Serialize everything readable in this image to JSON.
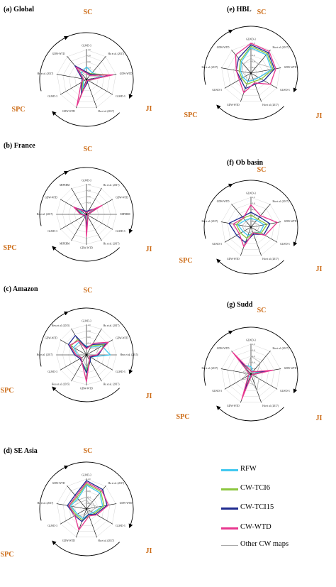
{
  "legend": {
    "items": [
      {
        "label": "RFW",
        "color": "#41c8f0",
        "width": 3
      },
      {
        "label": "CW-TCI6",
        "color": "#8cc63f",
        "width": 3
      },
      {
        "label": "CW-TCI15",
        "color": "#1f2b8f",
        "width": 3
      },
      {
        "label": "CW-WTD",
        "color": "#e8378f",
        "width": 3
      },
      {
        "label": "Other CW maps",
        "color": "#aaaaaa",
        "width": 1
      }
    ]
  },
  "chart_data": [
    {
      "type": "radar",
      "title": "(a) Global",
      "axes": [
        "GLWD-3",
        "Hu et al. (2017)",
        "GDW-WTD",
        "GLWD-3",
        "Hu et al. (2017)",
        "GDW-WTD",
        "GLWD-3",
        "Hu et al. (2017)",
        "GDW-WTD"
      ],
      "rlim": [
        0,
        1
      ],
      "ticks": [
        "0.4",
        "0.6",
        "0.8",
        "1.0"
      ],
      "arc_labels": [
        "SC",
        "JI",
        "SPC"
      ],
      "series": [
        {
          "name": "RFW",
          "values": [
            0.42,
            0.3,
            0.55,
            0.05,
            0.1,
            0.3,
            0.12,
            0.12,
            0.28
          ]
        },
        {
          "name": "CW-TCI6",
          "values": [
            0.25,
            0.25,
            0.85,
            0.06,
            0.1,
            0.45,
            0.15,
            0.12,
            0.55
          ]
        },
        {
          "name": "CW-TCI15",
          "values": [
            0.25,
            0.22,
            0.8,
            0.05,
            0.1,
            0.5,
            0.18,
            0.15,
            0.6
          ]
        },
        {
          "name": "CW-WTD",
          "values": [
            0.22,
            0.18,
            0.9,
            0.06,
            0.05,
            0.95,
            0.2,
            0.1,
            0.55
          ]
        },
        {
          "name": "Other CW maps",
          "values": [
            0.15,
            0.2,
            0.5,
            0.05,
            0.1,
            0.3,
            0.12,
            0.1,
            0.35
          ]
        },
        {
          "name": "Other CW maps",
          "values": [
            0.2,
            0.15,
            0.6,
            0.1,
            0.08,
            0.4,
            0.1,
            0.12,
            0.45
          ]
        }
      ]
    },
    {
      "type": "radar",
      "title": "(b) France",
      "axes": [
        "GLWD-3",
        "Hu et al. (2017)",
        "GDW-WTD",
        "MIPERM",
        "GLWD-3",
        "Hu et al. (2017)",
        "GDW-WTD",
        "MIPERM",
        "GLWD-3",
        "Hu et al. (2017)",
        "GDW-WTD",
        "MIPERM"
      ],
      "rlim": [
        0,
        1
      ],
      "ticks": [
        "0.4",
        "0.6",
        "0.8",
        "1.0"
      ],
      "arc_labels": [
        "SC",
        "JI",
        "SPC"
      ],
      "series": [
        {
          "name": "RFW",
          "values": [
            0.08,
            0.1,
            0.35,
            0.05,
            0.05,
            0.05,
            0.2,
            0.05,
            0.05,
            0.1,
            0.3,
            0.1
          ]
        },
        {
          "name": "CW-TCI6",
          "values": [
            0.1,
            0.12,
            0.4,
            0.05,
            0.05,
            0.08,
            0.35,
            0.05,
            0.08,
            0.15,
            0.4,
            0.12
          ]
        },
        {
          "name": "CW-TCI15",
          "values": [
            0.1,
            0.15,
            0.42,
            0.05,
            0.05,
            0.1,
            0.38,
            0.08,
            0.08,
            0.18,
            0.45,
            0.15
          ]
        },
        {
          "name": "CW-WTD",
          "values": [
            0.05,
            0.1,
            0.6,
            0.05,
            0.05,
            0.1,
            0.75,
            0.05,
            0.05,
            0.2,
            0.5,
            0.1
          ]
        },
        {
          "name": "Other CW maps",
          "values": [
            0.1,
            0.1,
            0.3,
            0.1,
            0.05,
            0.1,
            0.3,
            0.1,
            0.1,
            0.12,
            0.35,
            0.1
          ]
        }
      ]
    },
    {
      "type": "radar",
      "title": "(c) Amazon",
      "axes": [
        "GLWD-3",
        "Hu et al. (2017)",
        "GDW-WTD",
        "Hess et al. (2015)",
        "GLWD-3",
        "Hu et al. (2017)",
        "GDW-WTD",
        "Hess et al. (2015)",
        "GLWD-3",
        "Hu et al. (2017)",
        "GDW-WTD",
        "Hess et al. (2015)"
      ],
      "rlim": [
        0,
        1
      ],
      "ticks": [
        "0.4",
        "0.6",
        "0.8",
        "1.0"
      ],
      "arc_labels": [
        "SC",
        "JI",
        "SPC"
      ],
      "series": [
        {
          "name": "RFW",
          "values": [
            0.3,
            0.3,
            0.6,
            0.8,
            0.15,
            0.2,
            0.5,
            0.3,
            0.2,
            0.3,
            0.5,
            0.5
          ]
        },
        {
          "name": "CW-TCI6",
          "values": [
            0.25,
            0.35,
            0.7,
            0.4,
            0.15,
            0.2,
            0.55,
            0.3,
            0.2,
            0.35,
            0.6,
            0.6
          ]
        },
        {
          "name": "CW-TCI15",
          "values": [
            0.25,
            0.4,
            0.75,
            0.4,
            0.15,
            0.25,
            0.6,
            0.3,
            0.25,
            0.4,
            0.7,
            0.75
          ]
        },
        {
          "name": "CW-WTD",
          "values": [
            0.2,
            0.45,
            0.85,
            0.35,
            0.1,
            0.2,
            0.9,
            0.3,
            0.2,
            0.35,
            0.65,
            0.55
          ]
        },
        {
          "name": "Other CW maps",
          "values": [
            0.3,
            0.25,
            0.5,
            0.3,
            0.2,
            0.2,
            0.4,
            0.2,
            0.2,
            0.25,
            0.45,
            0.4
          ]
        }
      ]
    },
    {
      "type": "radar",
      "title": "(d) SE Asia",
      "axes": [
        "GLWD-3",
        "Hu et al. (2017)",
        "GDW-WTD",
        "GLWD-3",
        "Hu et al. (2017)",
        "GDW-WTD",
        "GLWD-3",
        "Hu et al. (2017)",
        "GDW-WTD"
      ],
      "rlim": [
        0,
        1
      ],
      "ticks": [
        "0.2",
        "0.4",
        "0.6",
        "0.8",
        "1.0"
      ],
      "arc_labels": [
        "SC",
        "JI",
        "SPC"
      ],
      "series": [
        {
          "name": "RFW",
          "values": [
            0.8,
            0.7,
            0.55,
            0.25,
            0.2,
            0.35,
            0.35,
            0.55,
            0.45
          ]
        },
        {
          "name": "CW-TCI6",
          "values": [
            0.85,
            0.75,
            0.6,
            0.3,
            0.25,
            0.4,
            0.4,
            0.6,
            0.5
          ]
        },
        {
          "name": "CW-TCI15",
          "values": [
            0.95,
            0.85,
            0.7,
            0.35,
            0.2,
            0.45,
            0.45,
            0.65,
            0.6
          ]
        },
        {
          "name": "CW-WTD",
          "values": [
            0.9,
            0.8,
            0.75,
            0.4,
            0.25,
            0.75,
            0.45,
            0.6,
            0.55
          ]
        },
        {
          "name": "Other CW maps",
          "values": [
            0.4,
            0.3,
            0.3,
            0.2,
            0.15,
            0.2,
            0.5,
            0.6,
            0.4
          ]
        },
        {
          "name": "Other CW maps",
          "values": [
            0.3,
            0.2,
            0.4,
            0.15,
            0.1,
            0.3,
            0.35,
            0.5,
            0.3
          ]
        }
      ]
    },
    {
      "type": "radar",
      "title": "(e) HBL",
      "axes": [
        "GLWD-3",
        "Hu et al. (2017)",
        "GDW-WTD",
        "GLWD-3",
        "Hu et al. (2017)",
        "GDW-WTD",
        "GLWD-3",
        "Hu et al. (2017)",
        "GDW-WTD"
      ],
      "rlim": [
        0,
        1
      ],
      "ticks": [
        "0.2",
        "0.4",
        "0.6",
        "0.8",
        "1.0"
      ],
      "arc_labels": [
        "SC",
        "JI",
        "SPC"
      ],
      "series": [
        {
          "name": "RFW",
          "values": [
            0.85,
            0.8,
            0.7,
            0.3,
            0.25,
            0.3,
            0.3,
            0.35,
            0.5
          ]
        },
        {
          "name": "CW-TCI6",
          "values": [
            0.9,
            0.85,
            0.75,
            0.4,
            0.3,
            0.4,
            0.35,
            0.4,
            0.55
          ]
        },
        {
          "name": "CW-TCI15",
          "values": [
            0.95,
            0.9,
            0.8,
            0.5,
            0.4,
            0.55,
            0.4,
            0.5,
            0.65
          ]
        },
        {
          "name": "CW-WTD",
          "values": [
            1.0,
            0.95,
            0.85,
            0.75,
            0.35,
            0.7,
            0.45,
            0.5,
            0.8
          ]
        },
        {
          "name": "Other CW maps",
          "values": [
            0.5,
            0.4,
            0.85,
            0.3,
            0.2,
            0.3,
            0.2,
            0.3,
            0.4
          ]
        }
      ]
    },
    {
      "type": "radar",
      "title": "(f) Ob basin",
      "axes": [
        "GLWD-3",
        "Hu et al. (2017)",
        "GDW-WTD",
        "GLWD-3",
        "Hu et al. (2017)",
        "GDW-WTD",
        "GLWD-3",
        "Hu et al. (2017)",
        "GDW-WTD"
      ],
      "rlim": [
        0,
        1
      ],
      "ticks": [
        "0.2",
        "0.4",
        "0.6",
        "0.8",
        "1.0"
      ],
      "arc_labels": [
        "SC",
        "JI",
        "SPC"
      ],
      "series": [
        {
          "name": "RFW",
          "values": [
            0.3,
            0.3,
            0.45,
            0.35,
            0.2,
            0.3,
            0.3,
            0.45,
            0.3
          ]
        },
        {
          "name": "CW-TCI6",
          "values": [
            0.4,
            0.35,
            0.55,
            0.4,
            0.2,
            0.4,
            0.4,
            0.5,
            0.4
          ]
        },
        {
          "name": "CW-TCI15",
          "values": [
            0.5,
            0.45,
            0.65,
            0.5,
            0.25,
            0.55,
            0.55,
            0.75,
            0.45
          ]
        },
        {
          "name": "CW-WTD",
          "values": [
            0.75,
            0.5,
            0.9,
            0.55,
            0.2,
            0.7,
            0.45,
            0.6,
            0.4
          ]
        },
        {
          "name": "Other CW maps",
          "values": [
            0.3,
            0.2,
            0.3,
            0.25,
            0.15,
            0.2,
            0.25,
            0.3,
            0.25
          ]
        }
      ]
    },
    {
      "type": "radar",
      "title": "(g) Sudd",
      "axes": [
        "GLWD-3",
        "Hu et al. (2017)",
        "GDW-WTD",
        "GLWD-3",
        "Hu et al. (2017)",
        "GDW-WTD",
        "GLWD-3",
        "Hu et al. (2017)",
        "GDW-WTD"
      ],
      "rlim": [
        0,
        1
      ],
      "ticks": [
        "0.2",
        "0.4",
        "0.6",
        "0.8",
        "1.0"
      ],
      "arc_labels": [
        "SC",
        "JI",
        "SPC"
      ],
      "series": [
        {
          "name": "RFW",
          "values": [
            0.25,
            0.1,
            0.3,
            0.05,
            0.05,
            0.1,
            0.1,
            0.05,
            0.4
          ]
        },
        {
          "name": "CW-TCI6",
          "values": [
            0.1,
            0.1,
            0.45,
            0.05,
            0.05,
            0.5,
            0.1,
            0.05,
            0.5
          ]
        },
        {
          "name": "CW-TCI15",
          "values": [
            0.1,
            0.1,
            0.5,
            0.05,
            0.05,
            0.55,
            0.1,
            0.05,
            0.6
          ]
        },
        {
          "name": "CW-WTD",
          "values": [
            0.1,
            0.1,
            0.75,
            0.05,
            0.05,
            0.9,
            0.1,
            0.05,
            0.95
          ]
        },
        {
          "name": "Other CW maps",
          "values": [
            0.6,
            0.5,
            0.2,
            0.1,
            0.4,
            0.3,
            0.1,
            0.3,
            0.2
          ]
        },
        {
          "name": "Other CW maps",
          "values": [
            0.2,
            0.1,
            0.1,
            0.3,
            0.6,
            0.15,
            0.4,
            0.1,
            0.4
          ]
        }
      ]
    }
  ]
}
